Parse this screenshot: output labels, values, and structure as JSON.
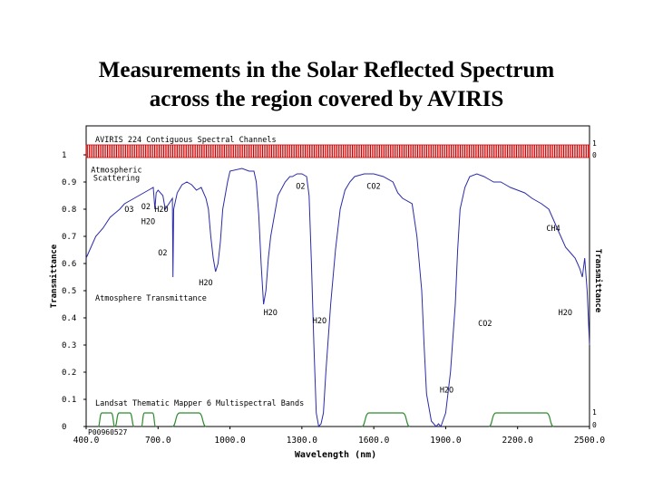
{
  "slide": {
    "title_line1": "Measurements in the Solar Reflected Spectrum",
    "title_line2": "across the region covered by AVIRIS"
  },
  "colors": {
    "transmittance": "#2b2ba8",
    "aviris_bars": "#cc0000",
    "landsat": "#2e8b2e",
    "axis": "#000000"
  },
  "chart_data": {
    "type": "line",
    "xlabel": "Wavelength (nm)",
    "ylabel_left": "Transmittance",
    "ylabel_right": "Transmittance",
    "xlim": [
      400,
      2500
    ],
    "ylim": [
      0,
      1
    ],
    "x_tick_labels": [
      "400.0",
      "700.0",
      "1000.0",
      "1300.0",
      "1600.0",
      "1900.0",
      "2200.0",
      "2500.0"
    ],
    "x_ticks": [
      400,
      700,
      1000,
      1300,
      1600,
      1900,
      2200,
      2500
    ],
    "y_tick_labels": [
      "0",
      "0.1",
      "0.2",
      "0.3",
      "0.4",
      "0.5",
      "0.6",
      "0.7",
      "0.8",
      "0.9",
      "1"
    ],
    "y_ticks": [
      0,
      0.1,
      0.2,
      0.3,
      0.4,
      0.5,
      0.6,
      0.7,
      0.8,
      0.9,
      1
    ],
    "right_axis_labels": {
      "upper_top": "1",
      "upper_bottom": "0",
      "lower_top": "1",
      "lower_bottom": "0"
    },
    "aviris_band_label": "AVIRIS 224 Contiguous Spectral Channels",
    "landsat_label": "Landsat Thematic Mapper 6 Multispectral Bands",
    "transmittance_label": "Atmosphere Transmittance",
    "id_label": "P00960527",
    "aviris_channels": {
      "count": 224,
      "range": [
        400,
        2500
      ]
    },
    "series": [
      {
        "name": "Atmosphere Transmittance",
        "x": [
          400,
          420,
          440,
          470,
          500,
          540,
          560,
          600,
          620,
          640,
          660,
          680,
          687,
          692,
          700,
          720,
          730,
          760,
          762,
          765,
          780,
          800,
          820,
          840,
          860,
          880,
          900,
          910,
          920,
          930,
          940,
          950,
          960,
          970,
          990,
          1000,
          1050,
          1080,
          1100,
          1110,
          1120,
          1130,
          1140,
          1150,
          1160,
          1170,
          1200,
          1230,
          1250,
          1260,
          1280,
          1300,
          1320,
          1330,
          1340,
          1350,
          1360,
          1370,
          1380,
          1390,
          1400,
          1420,
          1440,
          1460,
          1480,
          1500,
          1520,
          1560,
          1600,
          1640,
          1680,
          1700,
          1720,
          1760,
          1780,
          1800,
          1810,
          1820,
          1840,
          1860,
          1870,
          1880,
          1900,
          1920,
          1940,
          1950,
          1960,
          1980,
          2000,
          2030,
          2060,
          2080,
          2100,
          2130,
          2150,
          2170,
          2200,
          2230,
          2260,
          2300,
          2330,
          2350,
          2370,
          2380,
          2400,
          2420,
          2440,
          2450,
          2460,
          2470,
          2480,
          2490,
          2500
        ],
        "y": [
          0.62,
          0.66,
          0.7,
          0.73,
          0.77,
          0.8,
          0.82,
          0.84,
          0.85,
          0.86,
          0.87,
          0.88,
          0.8,
          0.86,
          0.87,
          0.85,
          0.8,
          0.84,
          0.55,
          0.8,
          0.86,
          0.89,
          0.9,
          0.89,
          0.87,
          0.88,
          0.84,
          0.8,
          0.7,
          0.62,
          0.57,
          0.6,
          0.68,
          0.8,
          0.9,
          0.94,
          0.95,
          0.94,
          0.94,
          0.9,
          0.78,
          0.6,
          0.45,
          0.5,
          0.62,
          0.7,
          0.85,
          0.9,
          0.92,
          0.92,
          0.93,
          0.93,
          0.92,
          0.85,
          0.6,
          0.3,
          0.05,
          0.0,
          0.01,
          0.05,
          0.2,
          0.45,
          0.65,
          0.8,
          0.87,
          0.9,
          0.92,
          0.93,
          0.93,
          0.92,
          0.9,
          0.86,
          0.84,
          0.82,
          0.7,
          0.5,
          0.3,
          0.12,
          0.02,
          0.0,
          0.01,
          0.0,
          0.05,
          0.2,
          0.45,
          0.65,
          0.8,
          0.88,
          0.92,
          0.93,
          0.92,
          0.91,
          0.9,
          0.9,
          0.89,
          0.88,
          0.87,
          0.86,
          0.84,
          0.82,
          0.8,
          0.76,
          0.72,
          0.7,
          0.66,
          0.64,
          0.62,
          0.6,
          0.58,
          0.55,
          0.62,
          0.5,
          0.3
        ]
      },
      {
        "name": "Landsat Thematic Mapper 6 Multispectral Bands",
        "bands": [
          [
            450,
            520
          ],
          [
            520,
            600
          ],
          [
            630,
            690
          ],
          [
            760,
            900
          ],
          [
            1550,
            1750
          ],
          [
            2080,
            2350
          ]
        ]
      }
    ],
    "annotations": [
      {
        "text": "Atmospheric",
        "x": 420,
        "y": 0.935
      },
      {
        "text": "Scattering",
        "x": 430,
        "y": 0.905
      },
      {
        "text": "O3",
        "x": 560,
        "y": 0.79
      },
      {
        "text": "O2",
        "x": 630,
        "y": 0.8
      },
      {
        "text": "H2O",
        "x": 685,
        "y": 0.79
      },
      {
        "text": "H2O",
        "x": 630,
        "y": 0.745
      },
      {
        "text": "O2",
        "x": 700,
        "y": 0.63
      },
      {
        "text": "H2O",
        "x": 870,
        "y": 0.52
      },
      {
        "text": "O2",
        "x": 1275,
        "y": 0.875
      },
      {
        "text": "CO2",
        "x": 1570,
        "y": 0.875
      },
      {
        "text": "H2O",
        "x": 1140,
        "y": 0.41
      },
      {
        "text": "H2O",
        "x": 1345,
        "y": 0.38
      },
      {
        "text": "CH4",
        "x": 2320,
        "y": 0.72
      },
      {
        "text": "CO2",
        "x": 2035,
        "y": 0.37
      },
      {
        "text": "H2O",
        "x": 2370,
        "y": 0.41
      },
      {
        "text": "H2O",
        "x": 1875,
        "y": 0.125
      }
    ]
  }
}
